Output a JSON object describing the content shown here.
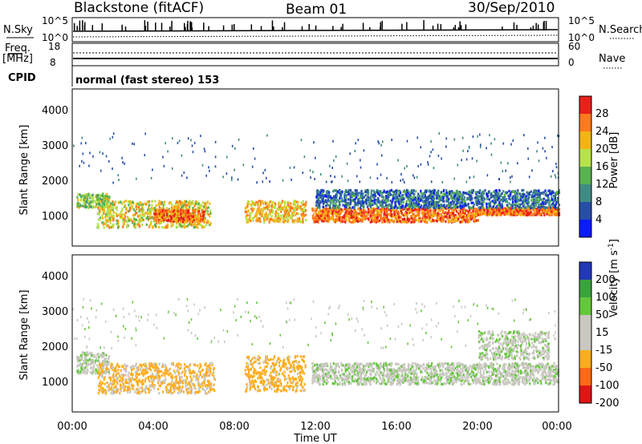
{
  "header": {
    "station": "Blackstone (fitACF)",
    "beam": "Beam 01",
    "date": "30/Sep/2010"
  },
  "params": {
    "nsky_label": "N.Sky",
    "nsky_ticks": [
      "10^5",
      "10^0"
    ],
    "nsearch_label": "N.Search",
    "nsearch_ticks": [
      "10^5",
      "10^0"
    ],
    "freq_label": "Freq.",
    "freq_unit": "[MHz]",
    "freq_ticks": [
      "18",
      "8"
    ],
    "nave_label": "Nave",
    "nave_ticks": [
      "60",
      "0"
    ],
    "cpid_label": "CPID",
    "cpid_value": "normal (fast stereo) 153"
  },
  "panels": {
    "power": {
      "ylabel": "Slant Range [km]",
      "yticks": [
        "4000",
        "3000",
        "2000",
        "1000"
      ],
      "cbar_label": "Power [dB]",
      "cbar_ticks": [
        "28",
        "24",
        "20",
        "16",
        "12",
        "8",
        "4"
      ]
    },
    "velocity": {
      "ylabel": "Slant Range [km]",
      "yticks": [
        "4000",
        "3000",
        "2000",
        "1000"
      ],
      "cbar_label_main": "Velocity [m s",
      "cbar_label_exp": "-1",
      "cbar_label_end": "]",
      "cbar_ticks": [
        "200",
        "100",
        "50",
        "15",
        "-15",
        "-50",
        "-100",
        "-200"
      ]
    }
  },
  "xaxis": {
    "ticks": [
      "00:00",
      "04:00",
      "08:00",
      "12:00",
      "16:00",
      "20:00",
      "00:00"
    ],
    "label": "Time UT"
  },
  "colors": {
    "power_scale": [
      "#0b1cff",
      "#284ea7",
      "#3f8c84",
      "#59b251",
      "#b6e24a",
      "#f2b415",
      "#ff7a1e",
      "#e8201a"
    ],
    "velocity_scale": [
      "#e01515",
      "#ff6a17",
      "#ffad1e",
      "#c9c7c0",
      "#c9c7c0",
      "#64c83b",
      "#3aa43c",
      "#2238b8"
    ]
  },
  "chart_data": [
    {
      "type": "heatmap",
      "title": "Power",
      "xlabel": "Time UT",
      "ylabel": "Slant Range [km]",
      "xlim": [
        0,
        24
      ],
      "ylim": [
        200,
        4600
      ],
      "colorbar": {
        "label": "Power [dB]",
        "range": [
          0,
          32
        ],
        "ticks": [
          4,
          8,
          12,
          16,
          20,
          24,
          28
        ]
      },
      "scatter_bands": [
        {
          "start_h": 0.2,
          "end_h": 1.8,
          "range_low_km": 1300,
          "range_high_km": 1700,
          "power_db": 16
        },
        {
          "start_h": 1.2,
          "end_h": 6.8,
          "range_low_km": 750,
          "range_high_km": 1500,
          "power_db": 20
        },
        {
          "start_h": 4.0,
          "end_h": 6.5,
          "range_low_km": 900,
          "range_high_km": 1250,
          "power_db": 26
        },
        {
          "start_h": 8.5,
          "end_h": 11.5,
          "range_low_km": 900,
          "range_high_km": 1500,
          "power_db": 22
        },
        {
          "start_h": 11.8,
          "end_h": 20.0,
          "range_low_km": 900,
          "range_high_km": 1300,
          "power_db": 26
        },
        {
          "start_h": 20.0,
          "end_h": 24.0,
          "range_low_km": 1100,
          "range_high_km": 1300,
          "power_db": 26
        },
        {
          "start_h": 12.0,
          "end_h": 24.0,
          "range_low_km": 1300,
          "range_high_km": 1800,
          "power_db": 8
        }
      ]
    },
    {
      "type": "heatmap",
      "title": "Velocity",
      "xlabel": "Time UT",
      "ylabel": "Slant Range [km]",
      "xlim": [
        0,
        24
      ],
      "ylim": [
        200,
        4600
      ],
      "colorbar": {
        "label": "Velocity [m s-1]",
        "range": [
          -250,
          250
        ],
        "ticks": [
          -200,
          -100,
          -50,
          -15,
          15,
          50,
          100,
          200
        ]
      },
      "scatter_bands": [
        {
          "start_h": 0.2,
          "end_h": 1.8,
          "range_low_km": 1300,
          "range_high_km": 1900,
          "velocity_ms": 0
        },
        {
          "start_h": 1.2,
          "end_h": 7.0,
          "range_low_km": 750,
          "range_high_km": 1600,
          "velocity_ms": -60
        },
        {
          "start_h": 8.5,
          "end_h": 11.5,
          "range_low_km": 800,
          "range_high_km": 1800,
          "velocity_ms": -70
        },
        {
          "start_h": 11.8,
          "end_h": 24.0,
          "range_low_km": 1000,
          "range_high_km": 1600,
          "velocity_ms": 0
        },
        {
          "start_h": 20.0,
          "end_h": 23.5,
          "range_low_km": 1700,
          "range_high_km": 2500,
          "velocity_ms": 0
        }
      ]
    }
  ]
}
